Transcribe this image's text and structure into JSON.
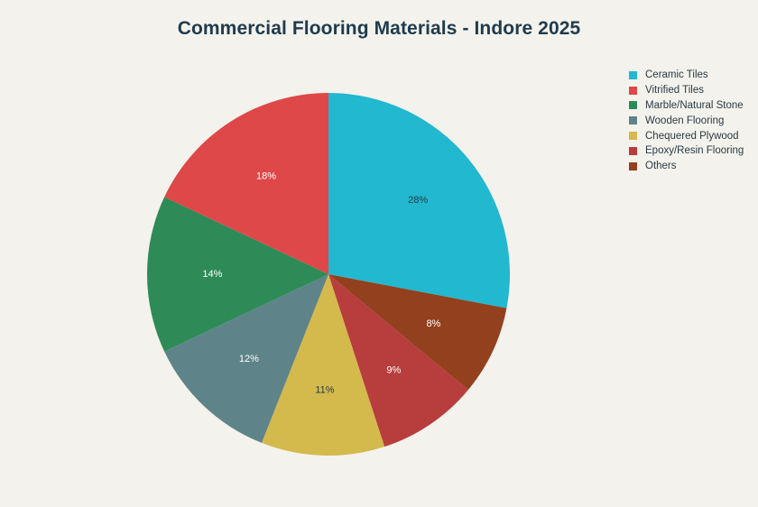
{
  "chart_data": {
    "type": "pie",
    "title": "Commercial Flooring Materials - Indore 2025",
    "legend_position": "top-right",
    "slices": [
      {
        "name": "Ceramic Tiles",
        "value": 28,
        "label": "28%",
        "color": "#22b8cf",
        "label_color": "#1f3b4d"
      },
      {
        "name": "Others",
        "value": 8,
        "label": "8%",
        "color": "#93401f",
        "label_color": "#ffffff"
      },
      {
        "name": "Epoxy/Resin Flooring",
        "value": 9,
        "label": "9%",
        "color": "#b83d3d",
        "label_color": "#ffffff"
      },
      {
        "name": "Chequered Plywood",
        "value": 11,
        "label": "11%",
        "color": "#d4b94c",
        "label_color": "#1f3b4d"
      },
      {
        "name": "Wooden Flooring",
        "value": 12,
        "label": "12%",
        "color": "#5e8489",
        "label_color": "#ffffff"
      },
      {
        "name": "Marble/Natural Stone",
        "value": 14,
        "label": "14%",
        "color": "#2e8b57",
        "label_color": "#ffffff"
      },
      {
        "name": "Vitrified Tiles",
        "value": 18,
        "label": "18%",
        "color": "#de4848",
        "label_color": "#ffffff"
      }
    ],
    "legend": [
      {
        "name": "Ceramic Tiles",
        "color": "#22b8cf"
      },
      {
        "name": "Vitrified Tiles",
        "color": "#de4848"
      },
      {
        "name": "Marble/Natural Stone",
        "color": "#2e8b57"
      },
      {
        "name": "Wooden Flooring",
        "color": "#5e8489"
      },
      {
        "name": "Chequered Plywood",
        "color": "#d4b94c"
      },
      {
        "name": "Epoxy/Resin Flooring",
        "color": "#b83d3d"
      },
      {
        "name": "Others",
        "color": "#93401f"
      }
    ]
  }
}
